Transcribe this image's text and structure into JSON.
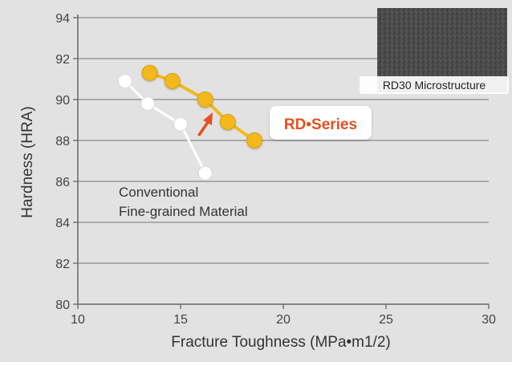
{
  "chart_data": {
    "type": "line",
    "xlabel": "Fracture Toughness (MPa•m1/2)",
    "ylabel": "Hardness (HRA)",
    "xlim": [
      10,
      30
    ],
    "ylim": [
      80,
      94
    ],
    "x_ticks": [
      "10",
      "15",
      "20",
      "25",
      "30"
    ],
    "y_ticks": [
      "80",
      "82",
      "84",
      "86",
      "88",
      "90",
      "92",
      "94"
    ],
    "grid": "horizontal",
    "series": [
      {
        "name": "RD•Series",
        "color": "#f2b81e",
        "points": [
          [
            13.5,
            91.3
          ],
          [
            14.6,
            90.9
          ],
          [
            16.2,
            90.0
          ],
          [
            17.3,
            88.9
          ],
          [
            18.6,
            88.0
          ]
        ]
      },
      {
        "name": "Conventional Fine-grained Material",
        "label_lines": [
          "Conventional",
          "Fine-grained Material"
        ],
        "color": "#ffffff",
        "points": [
          [
            12.3,
            90.9
          ],
          [
            13.4,
            89.8
          ],
          [
            15.0,
            88.8
          ],
          [
            16.2,
            86.4
          ]
        ]
      }
    ],
    "annotations": {
      "arrow_color": "#e8501e",
      "inset_label": "RD30 Microstructure"
    }
  },
  "colors": {
    "plot_background": "#e2e2e2",
    "gridline": "#888888",
    "series_label_color": "#e8501e"
  }
}
